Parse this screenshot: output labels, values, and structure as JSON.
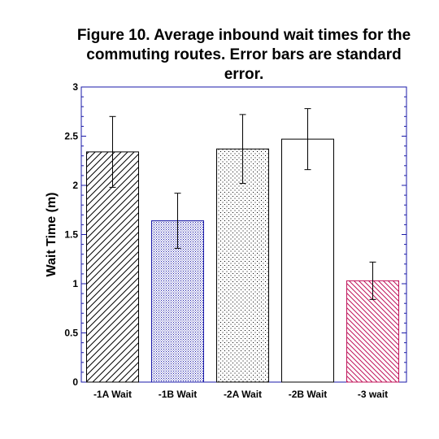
{
  "chart_data": {
    "type": "bar",
    "title": "Figure 10. Average inbound wait times for the commuting routes. Error bars are standard error.",
    "xlabel": "",
    "ylabel": "Wait Time (m)",
    "ylim": [
      0,
      3
    ],
    "yticks": [
      "0",
      "0.5",
      "1",
      "1.5",
      "2",
      "2.5",
      "3"
    ],
    "categories": [
      "-1A Wait",
      "-1B Wait",
      "-2A Wait",
      "-2B Wait",
      "-3 wait"
    ],
    "values": [
      2.34,
      1.64,
      2.37,
      2.47,
      1.03
    ],
    "errors": [
      0.36,
      0.28,
      0.35,
      0.31,
      0.19
    ],
    "fills": [
      "diagonal-hatch-black",
      "dense-dots-blue",
      "sparse-dots-black",
      "solid-white",
      "diagonal-hatch-magenta"
    ],
    "colors": {
      "axis": "#1a1aa8",
      "bar_outline": "#000000",
      "bar_2_pattern": "#1a1aa8",
      "bar_5_outline": "#c0145a",
      "bar_5_pattern": "#c0145a"
    },
    "grid": false,
    "legend": "none"
  }
}
